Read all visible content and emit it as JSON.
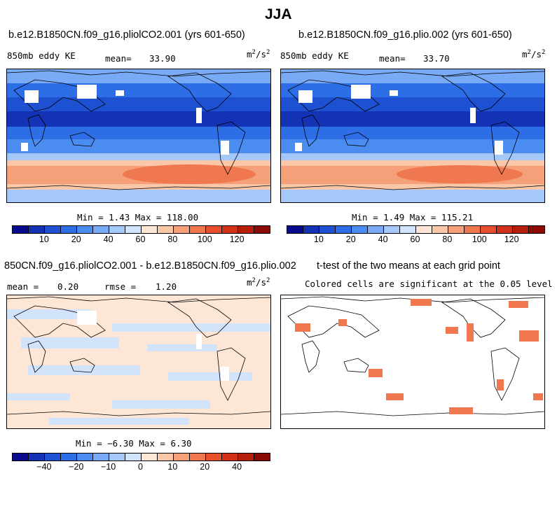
{
  "title": "JJA",
  "panel_top_left": {
    "title": "b.e12.B1850CN.f09_g16.pliolCO2.001 (yrs 601-650)",
    "variable": "850mb eddy KE",
    "mean_label": "mean=",
    "mean_value": "33.90",
    "units_base": "m",
    "units_exp1": "2",
    "units_mid": "/s",
    "units_exp2": "2",
    "minmax": "Min =   1.43 Max = 118.00"
  },
  "panel_top_right": {
    "title": "b.e12.B1850CN.f09_g16.plio.002 (yrs 601-650)",
    "variable": "850mb eddy KE",
    "mean_label": "mean=",
    "mean_value": "33.70",
    "units_base": "m",
    "units_exp1": "2",
    "units_mid": "/s",
    "units_exp2": "2",
    "minmax": "Min =   1.49 Max = 115.21"
  },
  "panel_bottom_left": {
    "title": "850CN.f09_g16.pliolCO2.001 - b.e12.B1850CN.f09_g16.plio.002",
    "mean_label": "mean =",
    "mean_value": "0.20",
    "rmse_label": "rmse =",
    "rmse_value": "1.20",
    "units_base": "m",
    "units_exp1": "2",
    "units_mid": "/s",
    "units_exp2": "2",
    "minmax": "Min =  −6.30 Max =   6.30"
  },
  "panel_bottom_right": {
    "title": "t-test of the two means at each grid point",
    "subtitle": "Colored cells are significant at the 0.05 level"
  },
  "colorbar_abs": {
    "colors": [
      "#0a0a8c",
      "#1432b4",
      "#1e50d2",
      "#2d6ee6",
      "#4a8cf0",
      "#78aaf5",
      "#a5c8fa",
      "#d2e4fc",
      "#fde6d6",
      "#fac8a8",
      "#f5a078",
      "#f07850",
      "#e6502d",
      "#d23218",
      "#b41e0a",
      "#8c0a05"
    ],
    "ticks": [
      "10",
      "20",
      "40",
      "60",
      "80",
      "100",
      "120"
    ]
  },
  "colorbar_diff": {
    "colors": [
      "#0a0a8c",
      "#1432b4",
      "#1e50d2",
      "#2d6ee6",
      "#4a8cf0",
      "#78aaf5",
      "#a5c8fa",
      "#d2e4fc",
      "#fde6d6",
      "#fac8a8",
      "#f5a078",
      "#f07850",
      "#e6502d",
      "#d23218",
      "#b41e0a",
      "#8c0a05"
    ],
    "ticks": [
      "−40",
      "−20",
      "−10",
      "0",
      "10",
      "20",
      "40"
    ]
  }
}
